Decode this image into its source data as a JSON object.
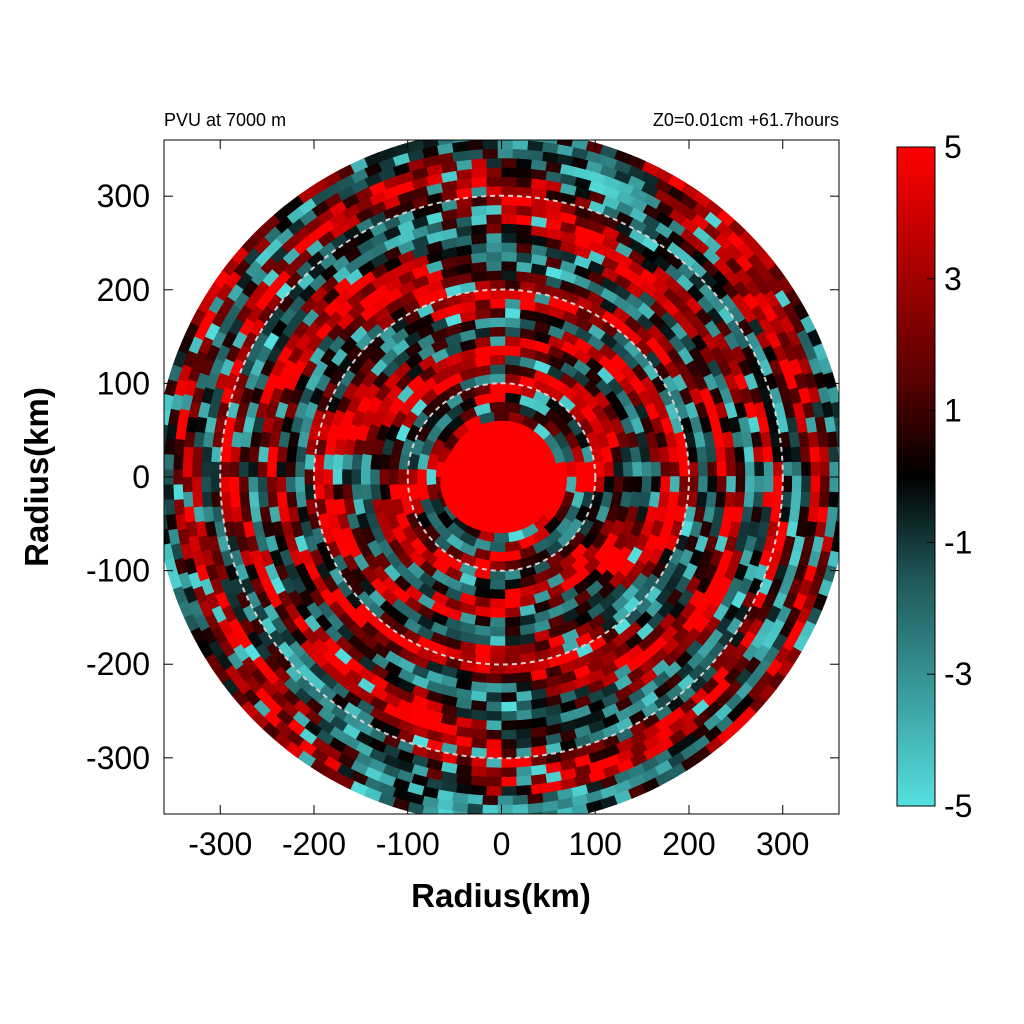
{
  "chart_data": {
    "type": "heatmap",
    "title_left": "PVU at  7000 m",
    "title_right": "Z0=0.01cm  +61.7hours",
    "xlabel": "Radius(km)",
    "ylabel": "Radius(km)",
    "xlim": [
      -360,
      360
    ],
    "ylim": [
      -360,
      360
    ],
    "x_ticks": [
      -300,
      -200,
      -100,
      0,
      100,
      200,
      300
    ],
    "y_ticks": [
      300,
      200,
      100,
      0,
      -100,
      -200,
      -300
    ],
    "domain_radius_km": 370,
    "reference_circles_km": [
      100,
      200,
      300
    ],
    "colorbar": {
      "range": [
        -5,
        5
      ],
      "ticks": [
        5,
        3,
        1,
        -1,
        -3,
        -5
      ],
      "colors": [
        "#55e0e0",
        "#000000",
        "#ff0000"
      ]
    },
    "eye_radius_km": 60
  }
}
